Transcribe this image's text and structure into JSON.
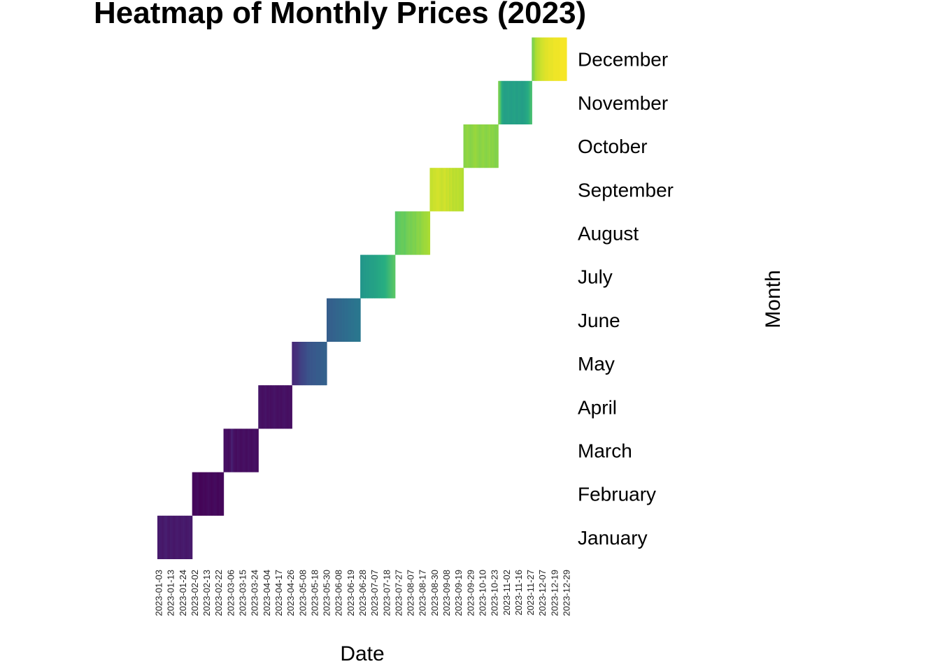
{
  "chart_data": {
    "type": "heatmap",
    "title": "Heatmap of Monthly Prices (2023)",
    "xlabel": "Date",
    "ylabel": "Month",
    "colormap": "viridis",
    "x_tick_labels": [
      "2023-01-03",
      "2023-01-13",
      "2023-01-24",
      "2023-02-02",
      "2023-02-13",
      "2023-02-22",
      "2023-03-06",
      "2023-03-15",
      "2023-03-24",
      "2023-04-04",
      "2023-04-17",
      "2023-04-26",
      "2023-05-08",
      "2023-05-18",
      "2023-05-30",
      "2023-06-08",
      "2023-06-19",
      "2023-06-28",
      "2023-07-07",
      "2023-07-18",
      "2023-07-27",
      "2023-08-07",
      "2023-08-17",
      "2023-08-30",
      "2023-09-08",
      "2023-09-19",
      "2023-09-29",
      "2023-10-10",
      "2023-10-23",
      "2023-11-02",
      "2023-11-16",
      "2023-11-27",
      "2023-12-07",
      "2023-12-19",
      "2023-12-29"
    ],
    "x_range": [
      "2023-01-01",
      "2023-12-31"
    ],
    "months": [
      {
        "name": "January",
        "start": "2023-01-01",
        "end": "2023-01-31",
        "values": [
          0.09,
          0.1,
          0.09,
          0.08,
          0.1,
          0.11,
          0.09,
          0.08,
          0.1,
          0.09,
          0.08,
          0.09,
          0.1,
          0.09,
          0.08,
          0.09,
          0.1,
          0.09,
          0.08,
          0.09,
          0.1,
          0.09
        ]
      },
      {
        "name": "February",
        "start": "2023-02-01",
        "end": "2023-02-28",
        "values": [
          0.03,
          0.02,
          0.03,
          0.04,
          0.02,
          0.01,
          0.02,
          0.03,
          0.02,
          0.03,
          0.04,
          0.03,
          0.02,
          0.03,
          0.04,
          0.03,
          0.02,
          0.03,
          0.02,
          0.03
        ]
      },
      {
        "name": "March",
        "start": "2023-03-01",
        "end": "2023-03-31",
        "values": [
          0.05,
          0.06,
          0.05,
          0.04,
          0.06,
          0.12,
          0.07,
          0.05,
          0.04,
          0.06,
          0.05,
          0.04,
          0.05,
          0.06,
          0.05,
          0.04,
          0.06,
          0.05,
          0.04,
          0.05,
          0.06,
          0.05,
          0.04
        ]
      },
      {
        "name": "April",
        "start": "2023-04-01",
        "end": "2023-04-30",
        "values": [
          0.08,
          0.06,
          0.05,
          0.06,
          0.07,
          0.05,
          0.06,
          0.05,
          0.06,
          0.07,
          0.06,
          0.05,
          0.06,
          0.05,
          0.06,
          0.07,
          0.06,
          0.05,
          0.06,
          0.05
        ]
      },
      {
        "name": "May",
        "start": "2023-05-01",
        "end": "2023-05-31",
        "values": [
          0.14,
          0.15,
          0.16,
          0.17,
          0.18,
          0.2,
          0.21,
          0.22,
          0.23,
          0.24,
          0.25,
          0.26,
          0.27,
          0.27,
          0.28,
          0.28,
          0.29,
          0.29,
          0.29,
          0.3,
          0.3,
          0.31,
          0.31
        ]
      },
      {
        "name": "June",
        "start": "2023-06-01",
        "end": "2023-06-30",
        "values": [
          0.3,
          0.3,
          0.31,
          0.31,
          0.32,
          0.32,
          0.33,
          0.33,
          0.34,
          0.34,
          0.35,
          0.35,
          0.36,
          0.36,
          0.37,
          0.37,
          0.38,
          0.38,
          0.39,
          0.39,
          0.4,
          0.4
        ]
      },
      {
        "name": "July",
        "start": "2023-07-01",
        "end": "2023-07-31",
        "values": [
          0.52,
          0.53,
          0.54,
          0.55,
          0.55,
          0.56,
          0.57,
          0.57,
          0.58,
          0.59,
          0.6,
          0.61,
          0.62,
          0.63,
          0.64,
          0.66,
          0.68,
          0.7,
          0.72,
          0.74
        ]
      },
      {
        "name": "August",
        "start": "2023-08-01",
        "end": "2023-08-31",
        "values": [
          0.74,
          0.75,
          0.76,
          0.76,
          0.77,
          0.77,
          0.76,
          0.78,
          0.79,
          0.8,
          0.79,
          0.8,
          0.81,
          0.8,
          0.82,
          0.83,
          0.82,
          0.84,
          0.85,
          0.86,
          0.86,
          0.87,
          0.88
        ]
      },
      {
        "name": "September",
        "start": "2023-09-01",
        "end": "2023-09-30",
        "values": [
          0.92,
          0.92,
          0.93,
          0.93,
          0.94,
          0.94,
          0.93,
          0.92,
          0.93,
          0.94,
          0.92,
          0.93,
          0.91,
          0.92,
          0.9,
          0.91,
          0.9,
          0.91,
          0.9,
          0.9,
          0.89
        ]
      },
      {
        "name": "October",
        "start": "2023-10-01",
        "end": "2023-10-31",
        "values": [
          0.82,
          0.83,
          0.84,
          0.83,
          0.82,
          0.83,
          0.84,
          0.85,
          0.84,
          0.83,
          0.82,
          0.83,
          0.84,
          0.83,
          0.82,
          0.83,
          0.84,
          0.82,
          0.83,
          0.82,
          0.81,
          0.82
        ]
      },
      {
        "name": "November",
        "start": "2023-11-01",
        "end": "2023-11-30",
        "values": [
          0.8,
          0.72,
          0.62,
          0.58,
          0.56,
          0.57,
          0.58,
          0.57,
          0.56,
          0.57,
          0.58,
          0.57,
          0.56,
          0.58,
          0.57,
          0.56,
          0.57,
          0.58,
          0.6,
          0.62,
          0.66,
          0.7
        ]
      },
      {
        "name": "December",
        "start": "2023-12-01",
        "end": "2023-12-31",
        "values": [
          0.8,
          0.84,
          0.88,
          0.9,
          0.91,
          0.93,
          0.94,
          0.95,
          0.96,
          0.96,
          0.97,
          0.97,
          0.97,
          0.98,
          0.98,
          0.98,
          0.98,
          0.99,
          0.99,
          0.99,
          0.99
        ]
      }
    ]
  }
}
